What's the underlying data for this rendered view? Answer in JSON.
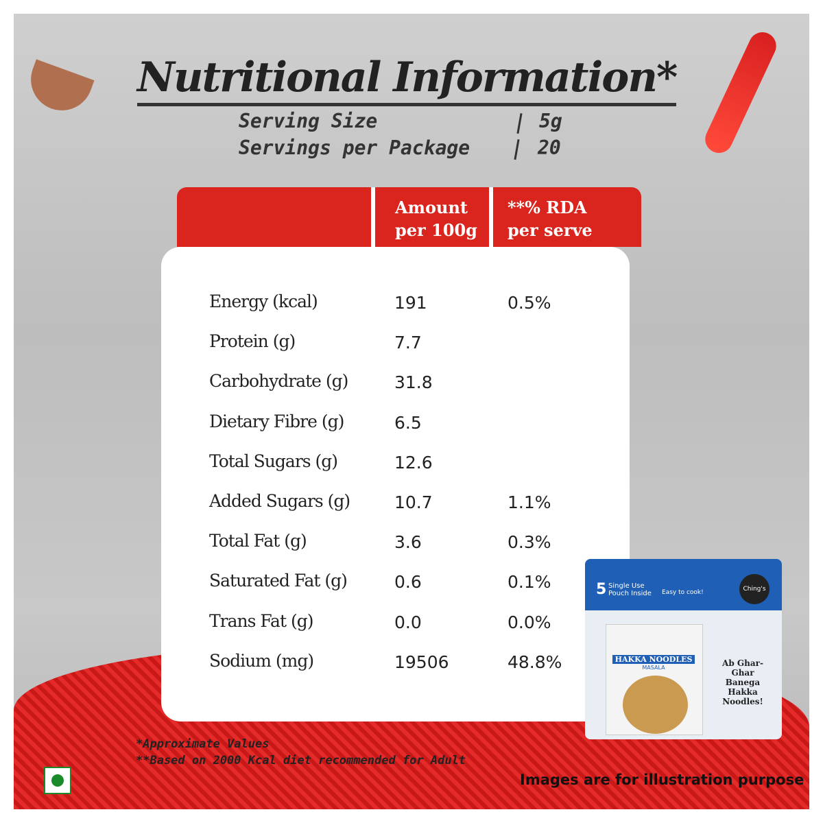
{
  "header": {
    "title": "Nutritional Information*",
    "serving": [
      {
        "label": "Serving Size",
        "value": "5g"
      },
      {
        "label": "Servings per Package",
        "value": "20"
      }
    ]
  },
  "table": {
    "columns": [
      "Amount per 100g",
      "**% RDA per serve"
    ],
    "rows": [
      {
        "label": "Energy (kcal)",
        "amount": "191",
        "rda": "0.5%"
      },
      {
        "label": "Protein (g)",
        "amount": "7.7"
      },
      {
        "label": "Carbohydrate (g)",
        "amount": "31.8"
      },
      {
        "label": "Dietary Fibre (g)",
        "amount": "6.5"
      },
      {
        "label": "Total Sugars (g)",
        "amount": "12.6"
      },
      {
        "label": "Added Sugars (g)",
        "amount": "10.7",
        "rda": "1.1%"
      },
      {
        "label": "Total Fat (g)",
        "amount": "3.6",
        "rda": "0.3%"
      },
      {
        "label": "Saturated Fat (g)",
        "amount": "0.6",
        "rda": "0.1%"
      },
      {
        "label": "Trans Fat (g)",
        "amount": "0.0",
        "rda": "0.0%"
      },
      {
        "label": "Sodium (mg)",
        "amount": "19506",
        "rda": "48.8%"
      }
    ]
  },
  "package": {
    "count": "5",
    "pouch": "Single Use Pouch Inside",
    "easy": "Easy to cook!",
    "brand": "Ching's",
    "product": "HAKKA NOODLES",
    "sub": "MASALA",
    "slogan": "Ab Ghar-Ghar Banega Hakka Noodles!"
  },
  "footer": {
    "notes": [
      "*Approximate Values",
      "**Based on 2000 Kcal diet recommended for Adult"
    ],
    "disclaimer": "Images are for illustration purpose"
  }
}
